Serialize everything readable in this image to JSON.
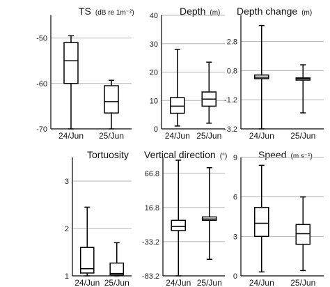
{
  "chart_data": [
    {
      "type": "box",
      "title": "TS",
      "unit": "(dB re 1m⁻²)",
      "categories": [
        "24/Jun",
        "25/Jun"
      ],
      "ylim": [
        -70,
        -45
      ],
      "yticks": [
        -50,
        -60,
        -70
      ],
      "ytick_labels": [
        "-50",
        "-60",
        "-70"
      ],
      "grid": true,
      "boxes": [
        {
          "category": "24/Jun",
          "min": -70.0,
          "q1": -60.0,
          "median": -55.0,
          "q3": -51.0,
          "max": -49.5
        },
        {
          "category": "25/Jun",
          "min": -70.0,
          "q1": -66.5,
          "median": -64.0,
          "q3": -60.5,
          "max": -59.3
        }
      ]
    },
    {
      "type": "box",
      "title": "Depth",
      "unit": "(m)",
      "categories": [
        "24/Jun",
        "25/Jun"
      ],
      "ylim": [
        0,
        40
      ],
      "yticks": [
        0,
        10,
        20,
        30,
        40
      ],
      "ytick_labels": [
        "0",
        "10",
        "20",
        "30",
        "40"
      ],
      "grid": true,
      "boxes": [
        {
          "category": "24/Jun",
          "min": 1.0,
          "q1": 5.5,
          "median": 8.0,
          "q3": 11.0,
          "max": 28.0
        },
        {
          "category": "25/Jun",
          "min": 2.0,
          "q1": 8.0,
          "median": 10.5,
          "q3": 13.0,
          "max": 23.5
        }
      ]
    },
    {
      "type": "box",
      "title": "Depth change",
      "unit": "(m)",
      "categories": [
        "24/Jun",
        "25/Jun"
      ],
      "ylim": [
        -3.2,
        4.6
      ],
      "yticks": [
        2.8,
        0.8,
        -1.2,
        -3.2
      ],
      "ytick_labels": [
        "2.8",
        "0.8",
        "-1.2",
        "-3.2"
      ],
      "grid": true,
      "boxes": [
        {
          "category": "24/Jun",
          "min": -3.2,
          "q1": 0.25,
          "median": 0.35,
          "q3": 0.5,
          "max": 3.9
        },
        {
          "category": "25/Jun",
          "min": -2.1,
          "q1": 0.15,
          "median": 0.25,
          "q3": 0.3,
          "max": 1.2
        }
      ]
    },
    {
      "type": "box",
      "title": "Tortuosity",
      "unit": "",
      "categories": [
        "24/Jun",
        "25/Jun"
      ],
      "ylim": [
        1,
        3.5
      ],
      "yticks": [
        1,
        2,
        3
      ],
      "ytick_labels": [
        "1",
        "2",
        "3"
      ],
      "grid": true,
      "boxes": [
        {
          "category": "24/Jun",
          "min": 1.0,
          "q1": 1.06,
          "median": 1.15,
          "q3": 1.6,
          "max": 2.45
        },
        {
          "category": "25/Jun",
          "min": 1.0,
          "q1": 1.02,
          "median": 1.05,
          "q3": 1.27,
          "max": 1.7
        }
      ]
    },
    {
      "type": "box",
      "title": "Vertical direction",
      "unit": "(°)",
      "categories": [
        "24/Jun",
        "25/Jun"
      ],
      "ylim": [
        -83.2,
        90
      ],
      "yticks": [
        66.8,
        16.8,
        -33.2,
        -83.2
      ],
      "ytick_labels": [
        "66.8",
        "16.8",
        "-33.2",
        "-83.2"
      ],
      "grid": true,
      "boxes": [
        {
          "category": "24/Jun",
          "min": -83.2,
          "q1": -17.0,
          "median": -11.0,
          "q3": -2.0,
          "max": 86.0
        },
        {
          "category": "25/Jun",
          "min": -59.0,
          "q1": -2.0,
          "median": 0.0,
          "q3": 3.0,
          "max": 75.0
        }
      ]
    },
    {
      "type": "box",
      "title": "Speed",
      "unit": "(m s⁻¹)",
      "categories": [
        "24/Jun",
        "25/Jun"
      ],
      "ylim": [
        0,
        9
      ],
      "yticks": [
        9,
        6,
        3,
        0
      ],
      "ytick_labels": [
        "9",
        "6",
        "3",
        "0"
      ],
      "grid": true,
      "boxes": [
        {
          "category": "24/Jun",
          "min": 0.3,
          "q1": 3.0,
          "median": 4.0,
          "q3": 5.2,
          "max": 8.4
        },
        {
          "category": "25/Jun",
          "min": 0.4,
          "q1": 2.4,
          "median": 3.2,
          "q3": 3.9,
          "max": 6.0
        }
      ]
    }
  ]
}
